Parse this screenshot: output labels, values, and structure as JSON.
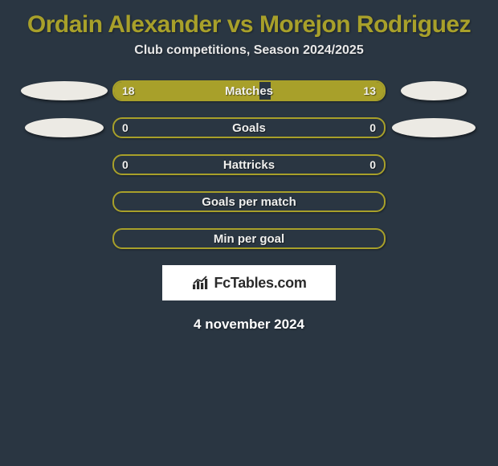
{
  "title": {
    "player1": "Ordain Alexander",
    "vs": "vs",
    "player2": "Morejon Rodriguez",
    "color": "#a8a02a"
  },
  "subtitle": "Club competitions, Season 2024/2025",
  "colors": {
    "player1": "#a8a02a",
    "player2": "#a8a02a",
    "bg": "#2a3642",
    "ellipse": "#eceae4"
  },
  "rows": [
    {
      "label": "Matches",
      "left": "18",
      "right": "13",
      "leftFillPct": 54,
      "rightFillPct": 42,
      "ellipseLeftW": 108,
      "ellipseRightW": 82,
      "showEllipses": true,
      "showVals": true
    },
    {
      "label": "Goals",
      "left": "0",
      "right": "0",
      "leftFillPct": 0,
      "rightFillPct": 0,
      "ellipseLeftW": 98,
      "ellipseRightW": 104,
      "showEllipses": true,
      "showVals": true
    },
    {
      "label": "Hattricks",
      "left": "0",
      "right": "0",
      "leftFillPct": 0,
      "rightFillPct": 0,
      "ellipseLeftW": 0,
      "ellipseRightW": 0,
      "showEllipses": false,
      "showVals": true
    },
    {
      "label": "Goals per match",
      "left": "",
      "right": "",
      "leftFillPct": 0,
      "rightFillPct": 0,
      "ellipseLeftW": 0,
      "ellipseRightW": 0,
      "showEllipses": false,
      "showVals": false
    },
    {
      "label": "Min per goal",
      "left": "",
      "right": "",
      "leftFillPct": 0,
      "rightFillPct": 0,
      "ellipseLeftW": 0,
      "ellipseRightW": 0,
      "showEllipses": false,
      "showVals": false
    }
  ],
  "logo": "FcTables.com",
  "date": "4 november 2024"
}
